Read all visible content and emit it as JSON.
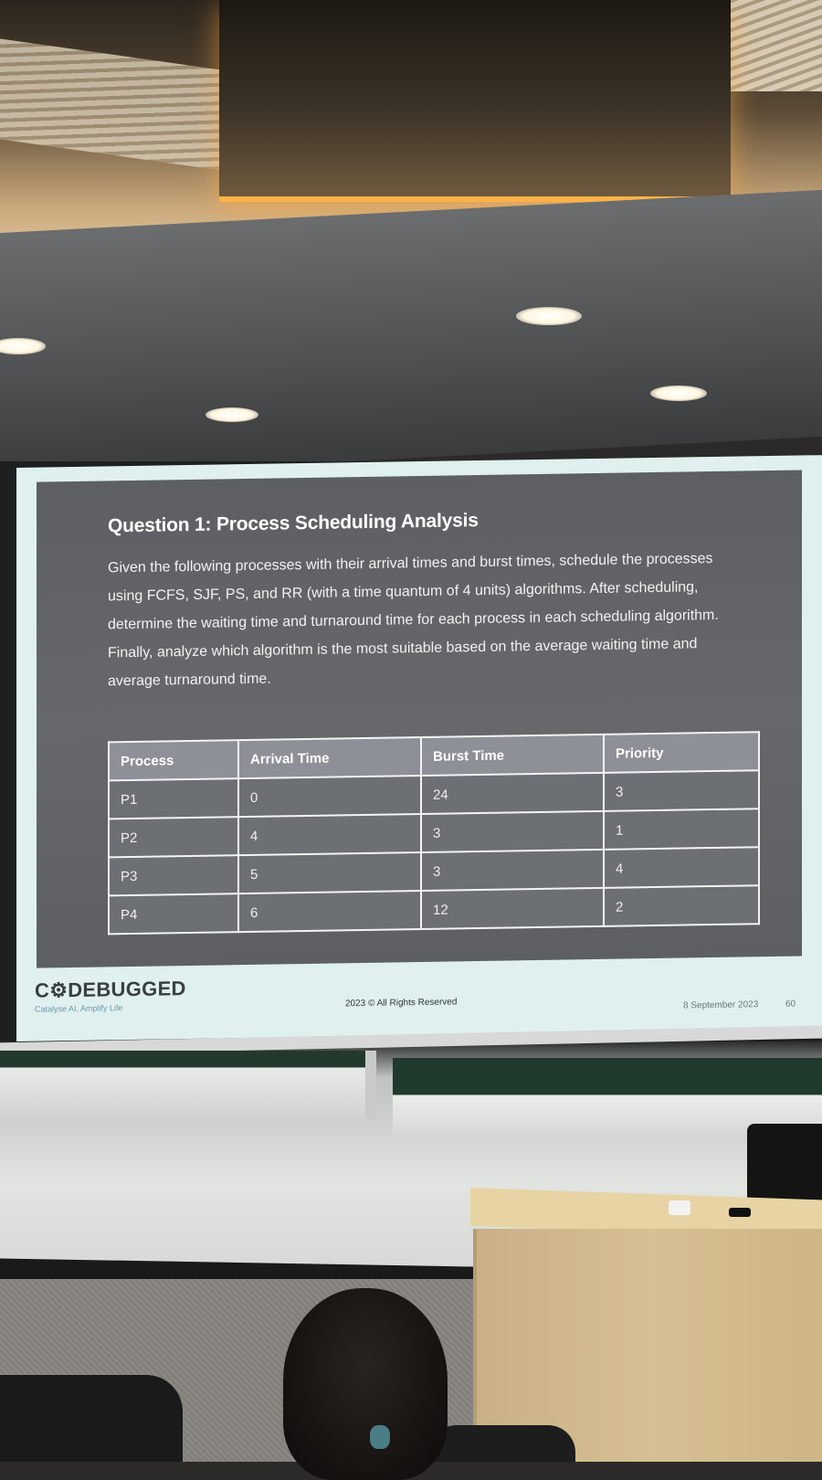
{
  "slide": {
    "title": "Question 1: Process Scheduling Analysis",
    "body": "Given the following processes with their arrival times and burst times, schedule the processes using FCFS, SJF, PS, and RR (with a time quantum of 4 units) algorithms. After scheduling, determine the waiting time and turnaround time for each process in each scheduling algorithm. Finally, analyze which algorithm is the most suitable based on the average waiting time and average turnaround time.",
    "table": {
      "headers": [
        "Process",
        "Arrival Time",
        "Burst Time",
        "Priority"
      ],
      "rows": [
        [
          "P1",
          "0",
          "24",
          "3"
        ],
        [
          "P2",
          "4",
          "3",
          "1"
        ],
        [
          "P3",
          "5",
          "3",
          "4"
        ],
        [
          "P4",
          "6",
          "12",
          "2"
        ]
      ]
    },
    "footer": {
      "brand": "C⚙DEBUGGED",
      "tagline": "Catalyse AI, Amplify Life",
      "copyright": "2023 © All Rights Reserved",
      "date": "8 September 2023",
      "page_number": "60"
    }
  },
  "colors": {
    "slide_background": "#636568",
    "screen_surround": "#dff0ef",
    "table_header": "#8d9097",
    "table_cell": "#6c6f74",
    "ceiling_glow": "#ffb347"
  }
}
